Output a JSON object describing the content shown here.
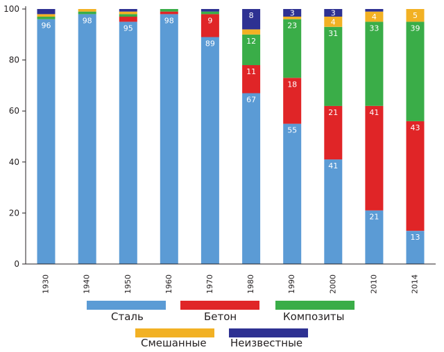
{
  "chart_data": {
    "type": "bar",
    "stacked": true,
    "title": "",
    "xlabel": "",
    "ylabel": "",
    "ylim": [
      0,
      100
    ],
    "yticks": [
      0,
      20,
      40,
      60,
      80,
      100
    ],
    "grid": false,
    "legend_position": "bottom",
    "categories": [
      "1930",
      "1940",
      "1950",
      "1960",
      "1970",
      "1980",
      "1990",
      "2000",
      "2010",
      "2014"
    ],
    "series": [
      {
        "name": "Сталь",
        "color": "#5b9bd5",
        "values": [
          96,
          98,
          95,
          98,
          89,
          67,
          55,
          41,
          21,
          13
        ]
      },
      {
        "name": "Бетон",
        "color": "#e02527",
        "values": [
          0,
          0,
          2,
          1,
          9,
          11,
          18,
          21,
          41,
          43
        ]
      },
      {
        "name": "Композиты",
        "color": "#3aad48",
        "values": [
          1,
          1,
          1,
          1,
          1,
          12,
          23,
          31,
          33,
          39
        ]
      },
      {
        "name": "Смешанные",
        "color": "#f2b124",
        "values": [
          1,
          1,
          1,
          0,
          0,
          2,
          1,
          4,
          4,
          5
        ]
      },
      {
        "name": "Неизвестные",
        "color": "#2e3192",
        "values": [
          2,
          0,
          1,
          0,
          1,
          8,
          3,
          3,
          1,
          0
        ]
      }
    ],
    "data_labels": [
      [
        "96",
        "",
        "",
        "",
        ""
      ],
      [
        "98",
        "",
        "",
        "",
        ""
      ],
      [
        "95",
        "",
        "",
        "",
        ""
      ],
      [
        "98",
        "",
        "",
        "",
        ""
      ],
      [
        "89",
        "9",
        "",
        "",
        ""
      ],
      [
        "67",
        "11",
        "12",
        "",
        "8"
      ],
      [
        "55",
        "18",
        "23",
        "",
        "3"
      ],
      [
        "41",
        "21",
        "31",
        "4",
        "3"
      ],
      [
        "21",
        "41",
        "33",
        "4",
        ""
      ],
      [
        "13",
        "43",
        "39",
        "5",
        ""
      ]
    ]
  }
}
